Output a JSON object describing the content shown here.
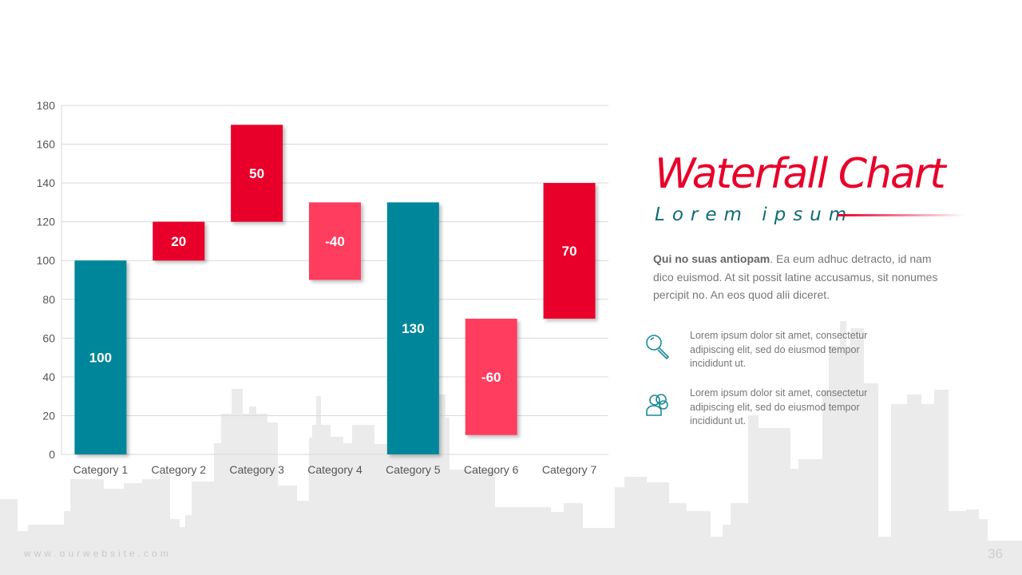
{
  "chart_data": {
    "type": "waterfall",
    "categories": [
      "Category 1",
      "Category 2",
      "Category 3",
      "Category 4",
      "Category 5",
      "Category 6",
      "Category 7"
    ],
    "values": [
      100,
      20,
      50,
      -40,
      130,
      -60,
      70
    ],
    "bases": [
      0,
      100,
      120,
      130,
      0,
      70,
      70
    ],
    "labels": [
      "100",
      "20",
      "50",
      "-40",
      "130",
      "-60",
      "70"
    ],
    "bar_types": [
      "total",
      "increase",
      "increase",
      "decrease",
      "total",
      "decrease",
      "increase"
    ],
    "ylim": [
      0,
      180
    ],
    "yticks": [
      0,
      20,
      40,
      60,
      80,
      100,
      120,
      140,
      160,
      180
    ],
    "grid": true,
    "colors": {
      "total": "#00869A",
      "increase": "#E8002A",
      "decrease": "#FF3D5E"
    }
  },
  "slide": {
    "title": "Waterfall Chart",
    "subtitle": "Lorem ipsum",
    "para_bold": "Qui no suas antiopam",
    "para_rest": ". Ea eum adhuc detracto, id nam dico euismod. At sit possit latine accusamus, sit nonumes percipit no. An eos quod alii diceret.",
    "items": [
      {
        "icon": "search-icon",
        "text": "Lorem ipsum dolor sit amet, consectetur adipiscing elit, sed do eiusmod tempor incididunt ut."
      },
      {
        "icon": "users-icon",
        "text": "Lorem ipsum dolor sit amet, consectetur adipiscing elit, sed do eiusmod tempor incididunt ut."
      }
    ],
    "footer": "www.ourwebsite.com",
    "page": "36"
  }
}
